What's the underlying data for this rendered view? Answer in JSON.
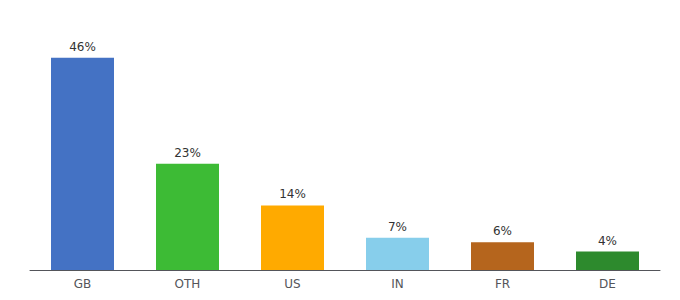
{
  "chart_data": {
    "type": "bar",
    "categories": [
      "GB",
      "OTH",
      "US",
      "IN",
      "FR",
      "DE"
    ],
    "values": [
      46,
      23,
      14,
      7,
      6,
      4
    ],
    "value_labels": [
      "46%",
      "23%",
      "14%",
      "7%",
      "6%",
      "4%"
    ],
    "colors": [
      "#4472c4",
      "#3dbb35",
      "#ffaa00",
      "#87ceeb",
      "#b5651d",
      "#2d8a2d"
    ],
    "ylim": [
      0,
      52
    ],
    "grid": false,
    "data_labels": true,
    "tick_labels": "x"
  }
}
